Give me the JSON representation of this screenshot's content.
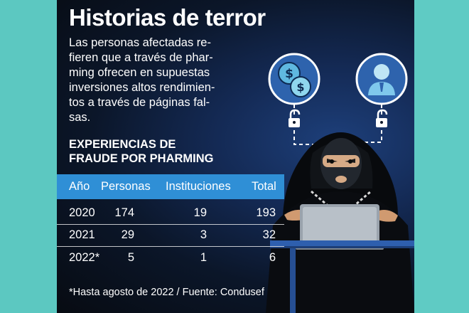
{
  "title": "Historias de terror",
  "intro": "Las personas afectadas re-\nfieren que a través de phar-\nming ofrecen en supuestas\ninversiones altos rendimien-\ntos a través de páginas fal-\nsas.",
  "section_title": "EXPERIENCIAS DE\nFRAUDE POR PHARMING",
  "table": {
    "headers": [
      "Año",
      "Personas",
      "Instituciones",
      "Total"
    ],
    "rows": [
      {
        "year": "2020",
        "personas": "174",
        "instituciones": "19",
        "total": "193"
      },
      {
        "year": "2021",
        "personas": "29",
        "instituciones": "3",
        "total": "32"
      },
      {
        "year": "2022*",
        "personas": "5",
        "instituciones": "1",
        "total": "6"
      }
    ]
  },
  "footnote": "*Hasta agosto de 2022 / Fuente: Condusef",
  "colors": {
    "header_band": "#2f8fd6",
    "background_side": "#5fc9c2",
    "panel_dark": "#0b1629"
  },
  "icons": [
    "dollar-coins-icon",
    "user-profile-icon",
    "unlocked-padlock-icon",
    "hooded-hacker-illustration",
    "laptop-icon"
  ]
}
